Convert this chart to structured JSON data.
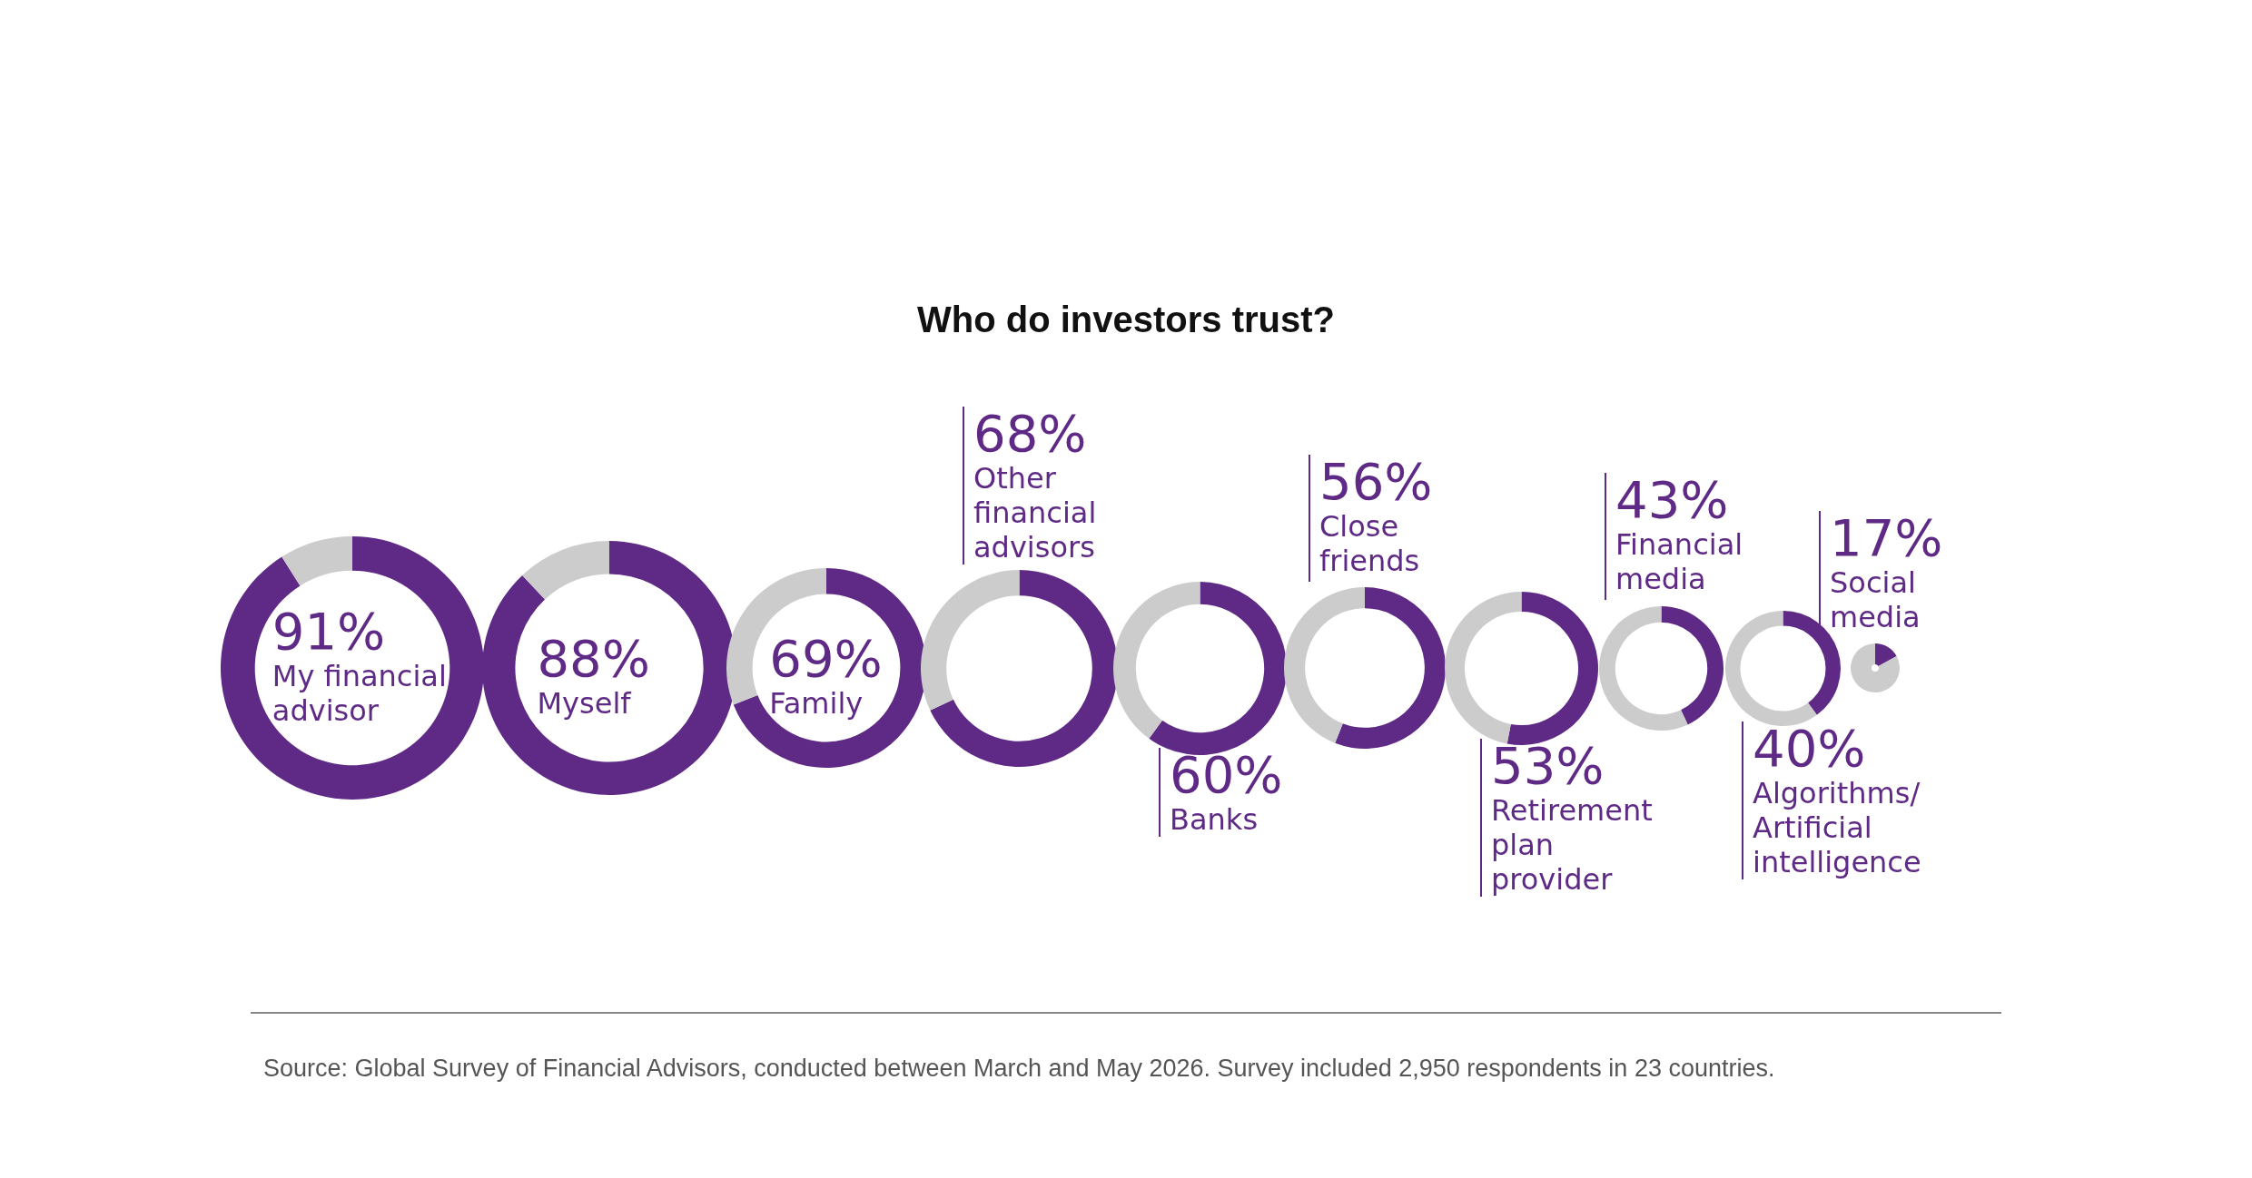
{
  "chart_data": [
    {
      "type": "donut",
      "title": "Who do investors trust?",
      "annotations": [
        "Source: Global Survey of Financial Advisors, conducted between March and May 2026. Survey included 2,950 respondents in 23 countries."
      ],
      "categories": [
        "My financial advisor",
        null
      ],
      "values": [
        91,
        9
      ],
      "colors": [
        "#5f2a86",
        "#cccccc"
      ],
      "value_labels": [
        "91%",
        null
      ]
    },
    {
      "type": "donut",
      "categories": [
        "Myself",
        null
      ],
      "values": [
        88,
        12
      ],
      "colors": [
        "#5f2a86",
        "#cccccc"
      ],
      "value_labels": [
        "88%",
        null
      ]
    },
    {
      "type": "donut",
      "categories": [
        "Family",
        null
      ],
      "values": [
        69,
        31
      ],
      "colors": [
        "#5f2a86",
        "#cccccc"
      ],
      "value_labels": [
        "69%",
        null
      ]
    },
    {
      "type": "donut",
      "categories": [
        "Other financial advisors",
        null
      ],
      "values": [
        68,
        32
      ],
      "colors": [
        "#5f2a86",
        "#cccccc"
      ],
      "value_labels": [
        "68%",
        null
      ]
    },
    {
      "type": "donut",
      "categories": [
        "Banks",
        null
      ],
      "values": [
        60,
        40
      ],
      "colors": [
        "#5f2a86",
        "#cccccc"
      ],
      "value_labels": [
        "60%",
        null
      ]
    },
    {
      "type": "donut",
      "categories": [
        "Close friends",
        null
      ],
      "values": [
        56,
        44
      ],
      "colors": [
        "#5f2a86",
        "#cccccc"
      ],
      "value_labels": [
        "56%",
        null
      ]
    },
    {
      "type": "donut",
      "categories": [
        "Retirement plan provider",
        null
      ],
      "values": [
        53,
        47
      ],
      "colors": [
        "#5f2a86",
        "#cccccc"
      ],
      "value_labels": [
        "53%",
        null
      ]
    },
    {
      "type": "donut",
      "categories": [
        "Financial media",
        null
      ],
      "values": [
        43,
        57
      ],
      "colors": [
        "#5f2a86",
        "#cccccc"
      ],
      "value_labels": [
        "43%",
        null
      ]
    },
    {
      "type": "donut",
      "categories": [
        "Algorithms/ Artificial intelligence",
        null
      ],
      "values": [
        40,
        60
      ],
      "colors": [
        "#5f2a86",
        "#cccccc"
      ],
      "value_labels": [
        "40%",
        null
      ]
    },
    {
      "type": "donut",
      "categories": [
        "Social media",
        null
      ],
      "values": [
        17,
        83
      ],
      "colors": [
        "#5f2a86",
        "#cccccc"
      ],
      "value_labels": [
        "17%",
        null
      ]
    }
  ]
}
